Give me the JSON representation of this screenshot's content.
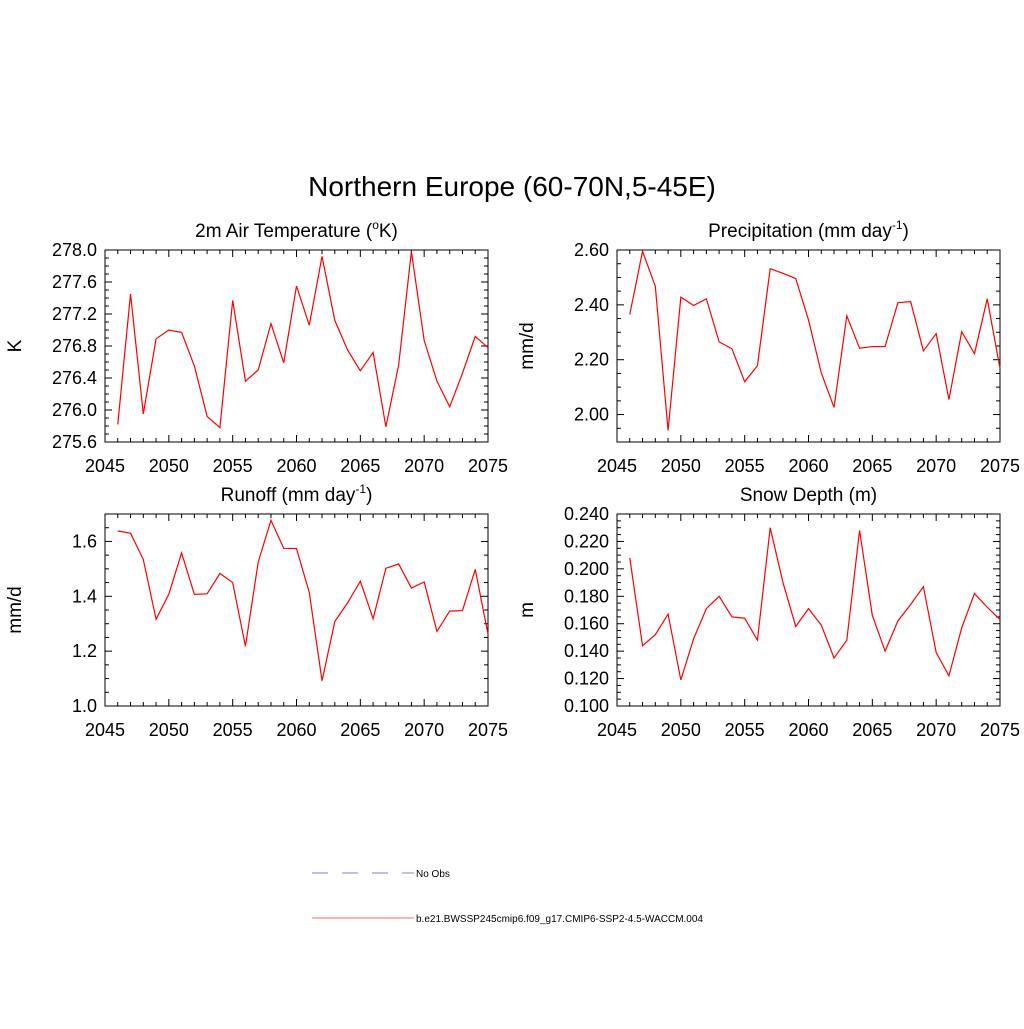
{
  "figure_title": "Northern Europe (60-70N,5-45E)",
  "legend": [
    {
      "label": "No Obs",
      "color": "#9999dd",
      "style": "dashed"
    },
    {
      "label": "b.e21.BWSSP245cmip6.f09_g17.CMIP6-SSP2-4.5-WACCM.004",
      "color": "#ff6666",
      "style": "solid"
    }
  ],
  "chart_data": [
    {
      "type": "line",
      "title": "2m Air Temperature (°K)",
      "title_base": "2m Air Temperature (",
      "title_sup": "o",
      "title_tail": "K)",
      "xlabel": "",
      "ylabel": "K",
      "xlim": [
        2045,
        2075
      ],
      "ylim": [
        275.6,
        278.0
      ],
      "x_ticks": [
        2045,
        2050,
        2055,
        2060,
        2065,
        2070,
        2075
      ],
      "y_ticks": [
        275.6,
        276.0,
        276.4,
        276.8,
        277.2,
        277.6,
        278.0
      ],
      "y_tick_labels": [
        "275.6",
        "276.0",
        "276.4",
        "276.8",
        "277.2",
        "277.6",
        "278.0"
      ],
      "color": "#ff0000",
      "x": [
        2046,
        2047,
        2048,
        2049,
        2050,
        2051,
        2052,
        2053,
        2054,
        2055,
        2056,
        2057,
        2058,
        2059,
        2060,
        2061,
        2062,
        2063,
        2064,
        2065,
        2066,
        2067,
        2068,
        2069,
        2070,
        2071,
        2072,
        2073,
        2074,
        2075
      ],
      "values": [
        275.82,
        277.45,
        275.95,
        276.89,
        277.0,
        276.97,
        276.55,
        275.92,
        275.78,
        277.37,
        276.36,
        276.5,
        277.08,
        276.59,
        277.55,
        277.06,
        277.92,
        277.12,
        276.75,
        276.49,
        276.72,
        275.79,
        276.56,
        277.98,
        276.87,
        276.36,
        276.04,
        276.46,
        276.92,
        276.78
      ],
      "series_name": "b.e21.BWSSP245cmip6.f09_g17.CMIP6-SSP2-4.5-WACCM.004"
    },
    {
      "type": "line",
      "title": "Precipitation (mm day-1)",
      "title_base": "Precipitation (mm day",
      "title_sup": "-1",
      "title_tail": ")",
      "xlabel": "",
      "ylabel": "mm/d",
      "xlim": [
        2045,
        2075
      ],
      "ylim": [
        1.9,
        2.6
      ],
      "x_ticks": [
        2045,
        2050,
        2055,
        2060,
        2065,
        2070,
        2075
      ],
      "y_ticks": [
        2.0,
        2.2,
        2.4,
        2.6
      ],
      "y_tick_labels": [
        "2.00",
        "2.20",
        "2.40",
        "2.60"
      ],
      "color": "#ff0000",
      "x": [
        2046,
        2047,
        2048,
        2049,
        2050,
        2051,
        2052,
        2053,
        2054,
        2055,
        2056,
        2057,
        2058,
        2059,
        2060,
        2061,
        2062,
        2063,
        2064,
        2065,
        2066,
        2067,
        2068,
        2069,
        2070,
        2071,
        2072,
        2073,
        2074,
        2075
      ],
      "values": [
        2.365,
        2.595,
        2.468,
        1.942,
        2.428,
        2.398,
        2.422,
        2.265,
        2.24,
        2.12,
        2.178,
        2.532,
        2.515,
        2.496,
        2.345,
        2.152,
        2.026,
        2.36,
        2.242,
        2.248,
        2.248,
        2.408,
        2.412,
        2.232,
        2.295,
        2.055,
        2.302,
        2.222,
        2.422,
        2.168
      ],
      "series_name": "b.e21.BWSSP245cmip6.f09_g17.CMIP6-SSP2-4.5-WACCM.004"
    },
    {
      "type": "line",
      "title": "Runoff (mm day-1)",
      "title_base": "Runoff (mm day",
      "title_sup": "-1",
      "title_tail": ")",
      "xlabel": "",
      "ylabel": "mm/d",
      "xlim": [
        2045,
        2075
      ],
      "ylim": [
        1.0,
        1.7
      ],
      "x_ticks": [
        2045,
        2050,
        2055,
        2060,
        2065,
        2070,
        2075
      ],
      "y_ticks": [
        1.0,
        1.2,
        1.4,
        1.6
      ],
      "y_tick_labels": [
        "1.0",
        "1.2",
        "1.4",
        "1.6"
      ],
      "color": "#ff0000",
      "x": [
        2046,
        2047,
        2048,
        2049,
        2050,
        2051,
        2052,
        2053,
        2054,
        2055,
        2056,
        2057,
        2058,
        2059,
        2060,
        2061,
        2062,
        2063,
        2064,
        2065,
        2066,
        2067,
        2068,
        2069,
        2070,
        2071,
        2072,
        2073,
        2074,
        2075
      ],
      "values": [
        1.638,
        1.63,
        1.534,
        1.316,
        1.408,
        1.558,
        1.407,
        1.409,
        1.483,
        1.45,
        1.218,
        1.525,
        1.677,
        1.575,
        1.574,
        1.414,
        1.092,
        1.308,
        1.376,
        1.455,
        1.318,
        1.502,
        1.518,
        1.43,
        1.452,
        1.272,
        1.346,
        1.348,
        1.498,
        1.262
      ],
      "series_name": "b.e21.BWSSP245cmip6.f09_g17.CMIP6-SSP2-4.5-WACCM.004"
    },
    {
      "type": "line",
      "title": "Snow Depth (m)",
      "title_base": "Snow Depth (m)",
      "title_sup": "",
      "title_tail": "",
      "xlabel": "",
      "ylabel": "m",
      "xlim": [
        2045,
        2075
      ],
      "ylim": [
        0.1,
        0.24
      ],
      "x_ticks": [
        2045,
        2050,
        2055,
        2060,
        2065,
        2070,
        2075
      ],
      "y_ticks": [
        0.1,
        0.12,
        0.14,
        0.16,
        0.18,
        0.2,
        0.22,
        0.24
      ],
      "y_tick_labels": [
        "0.100",
        "0.120",
        "0.140",
        "0.160",
        "0.180",
        "0.200",
        "0.220",
        "0.240"
      ],
      "color": "#ff0000",
      "x": [
        2046,
        2047,
        2048,
        2049,
        2050,
        2051,
        2052,
        2053,
        2054,
        2055,
        2056,
        2057,
        2058,
        2059,
        2060,
        2061,
        2062,
        2063,
        2064,
        2065,
        2066,
        2067,
        2068,
        2069,
        2070,
        2071,
        2072,
        2073,
        2074,
        2075
      ],
      "values": [
        0.208,
        0.144,
        0.152,
        0.167,
        0.119,
        0.149,
        0.171,
        0.18,
        0.165,
        0.164,
        0.148,
        0.23,
        0.19,
        0.158,
        0.171,
        0.159,
        0.135,
        0.148,
        0.228,
        0.166,
        0.14,
        0.162,
        0.174,
        0.187,
        0.139,
        0.122,
        0.157,
        0.182,
        0.172,
        0.163
      ],
      "series_name": "b.e21.BWSSP245cmip6.f09_g17.CMIP6-SSP2-4.5-WACCM.004"
    }
  ]
}
